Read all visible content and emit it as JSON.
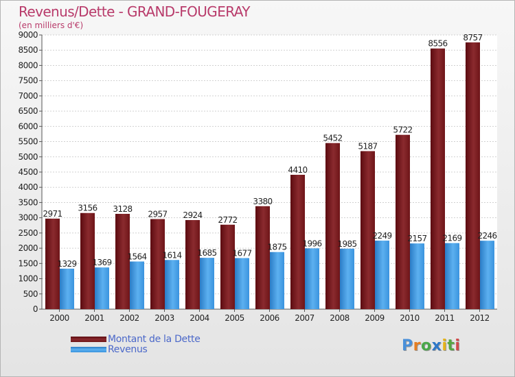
{
  "title": "Revenus/Dette - GRAND-FOUGERAY",
  "subtitle": "(en milliers d'€)",
  "chart_data": {
    "type": "bar",
    "categories": [
      "2000",
      "2001",
      "2002",
      "2003",
      "2004",
      "2005",
      "2006",
      "2007",
      "2008",
      "2009",
      "2010",
      "2011",
      "2012"
    ],
    "series": [
      {
        "name": "Montant de la Dette",
        "color": "#7a1a1e",
        "values": [
          2971,
          3156,
          3128,
          2957,
          2924,
          2772,
          3380,
          4410,
          5452,
          5187,
          5722,
          8556,
          8757
        ]
      },
      {
        "name": "Revenus",
        "color": "#3a93de",
        "values": [
          1329,
          1369,
          1564,
          1614,
          1685,
          1677,
          1875,
          1996,
          1985,
          2249,
          2157,
          2169,
          2246
        ]
      }
    ],
    "ylim": [
      0,
      9000
    ],
    "ytick_step": 500,
    "grid": true,
    "legend": "bottom-left"
  },
  "logo": {
    "letters": [
      "P",
      "r",
      "o",
      "x",
      "i",
      "t",
      "i"
    ],
    "colors": [
      "#4a90d9",
      "#e67e22",
      "#4aa84a",
      "#2e78c8",
      "#e5b31a",
      "#56a641",
      "#d04a4a"
    ]
  }
}
